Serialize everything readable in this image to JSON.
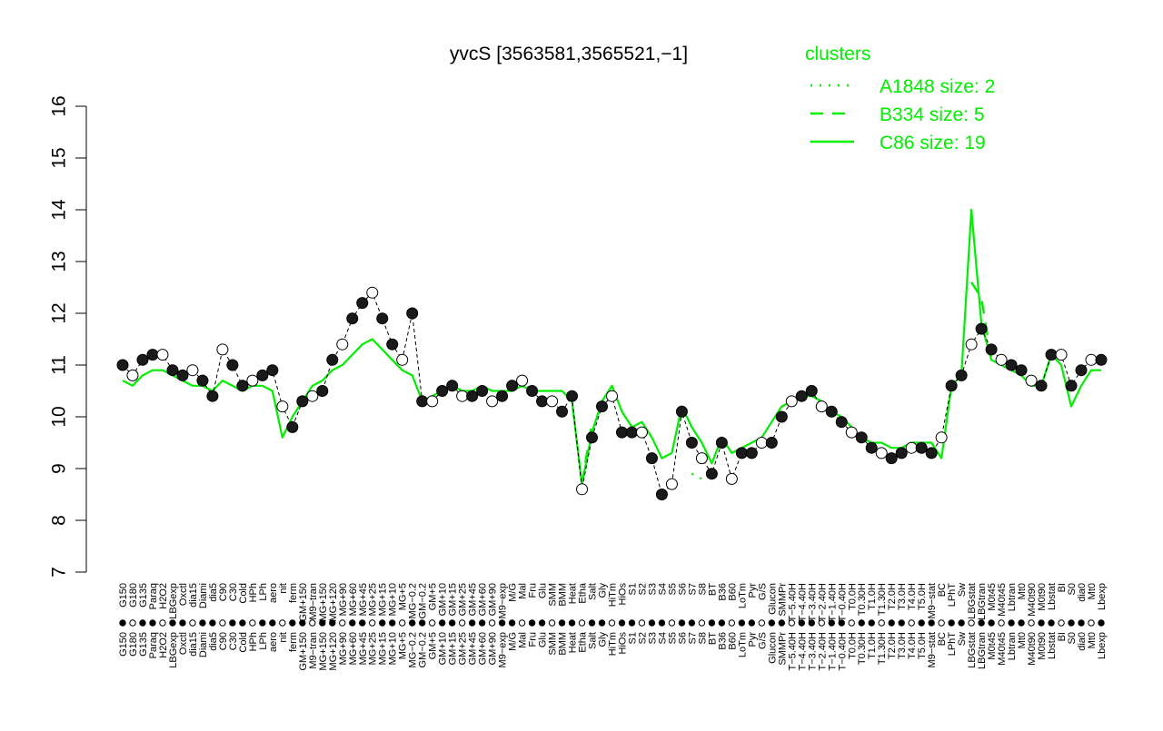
{
  "chart_data": {
    "type": "line",
    "title": "yvcS [3563581,3565521,−1]",
    "xlabel": "",
    "ylabel": "",
    "ylim": [
      7,
      16
    ],
    "yticks": [
      7,
      8,
      9,
      10,
      11,
      12,
      13,
      14,
      15,
      16
    ],
    "grid": false,
    "legend": {
      "title": "clusters",
      "position": "top-right",
      "entries": [
        {
          "label": "A1848 size: 2",
          "style": "dotted"
        },
        {
          "label": "B334 size: 5",
          "style": "dashed"
        },
        {
          "label": "C86 size: 19",
          "style": "solid"
        }
      ]
    },
    "colors": {
      "cluster": "#00ee00",
      "points_filled": "#1a1a1a",
      "points_open": "#ffffff",
      "axis": "#000000"
    },
    "x_tick_labels": [
      "G150",
      "G180",
      "G135",
      "Paraq",
      "H2O2",
      "LBGexp",
      "Oxctl",
      "dia15",
      "Diami",
      "dia5",
      "C90",
      "C30",
      "Cold",
      "HPh",
      "LPh",
      "aero",
      "nit",
      "ferm",
      "GM+150",
      "M9−tran",
      "MG+150",
      "MG+120",
      "MG+90",
      "MG+60",
      "MG+45",
      "MG+25",
      "MG+15",
      "MG+10",
      "MG+5",
      "MG−0.2",
      "GM−0.2",
      "GM+5",
      "GM+10",
      "GM+15",
      "GM+25",
      "GM+45",
      "GM+60",
      "GM+90",
      "M9−exp",
      "M/G",
      "Mal",
      "Fru",
      "Glu",
      "SMM",
      "BMM",
      "Heat",
      "Etha",
      "Salt",
      "Gly",
      "HiTm",
      "HiOs",
      "S1",
      "S2",
      "S3",
      "S4",
      "S5",
      "S6",
      "S7",
      "S8",
      "BT",
      "B36",
      "B60",
      "LoTm",
      "Pyr",
      "G/S",
      "Glucon",
      "SMMPr",
      "T−5.40H",
      "T−4.40H",
      "T−3.40H",
      "T−2.40H",
      "T−1.40H",
      "T−0.40H",
      "T0.0H",
      "T0.30H",
      "T1.0H",
      "T1.30H",
      "T2.0H",
      "T3.0H",
      "T4.0H",
      "T5.0H",
      "M9−stat",
      "BC",
      "LPhT",
      "Sw",
      "LBGstat",
      "LBGtran",
      "M0t45",
      "M40t45",
      "Lbtran",
      "Mt0",
      "M40t90",
      "M0t90",
      "Lbstat",
      "BI",
      "S0",
      "dia0",
      "Mt0",
      "Lbexp"
    ],
    "x": [
      1,
      2,
      3,
      4,
      5,
      6,
      7,
      8,
      9,
      10,
      11,
      12,
      13,
      14,
      15,
      16,
      17,
      18,
      19,
      20,
      21,
      22,
      23,
      24,
      25,
      26,
      27,
      28,
      29,
      30,
      31,
      32,
      33,
      34,
      35,
      36,
      37,
      38,
      39,
      40,
      41,
      42,
      43,
      44,
      45,
      46,
      47,
      48,
      49,
      50,
      51,
      52,
      53,
      54,
      55,
      56,
      57,
      58,
      59,
      60,
      61,
      62,
      63,
      64,
      65,
      66,
      67,
      68,
      69,
      70,
      71,
      72,
      73,
      74,
      75,
      76,
      77,
      78,
      79,
      80,
      81,
      82,
      83,
      84,
      85,
      86,
      87,
      88,
      89,
      90,
      91,
      92,
      93,
      94,
      95,
      96,
      97,
      98,
      99
    ],
    "series": [
      {
        "name": "C86 size: 19",
        "style": "solid",
        "values": [
          10.7,
          10.6,
          10.8,
          10.9,
          10.9,
          10.8,
          10.7,
          10.6,
          10.6,
          10.5,
          10.7,
          10.6,
          10.5,
          10.6,
          10.6,
          10.5,
          9.6,
          10.0,
          10.3,
          10.6,
          10.7,
          10.9,
          11.0,
          11.2,
          11.4,
          11.5,
          11.3,
          11.1,
          10.9,
          10.8,
          10.3,
          10.4,
          10.5,
          10.6,
          10.5,
          10.5,
          10.6,
          10.5,
          10.5,
          10.5,
          10.6,
          10.5,
          10.5,
          10.5,
          10.5,
          10.3,
          8.7,
          9.7,
          10.3,
          10.6,
          10.1,
          9.8,
          9.9,
          9.6,
          9.2,
          9.3,
          10.2,
          9.8,
          9.5,
          9.1,
          9.6,
          9.3,
          9.4,
          9.5,
          9.6,
          9.9,
          10.2,
          10.3,
          10.4,
          10.4,
          10.3,
          10.1,
          10.0,
          9.8,
          9.6,
          9.5,
          9.5,
          9.4,
          9.4,
          9.5,
          9.5,
          9.5,
          9.2,
          10.6,
          10.8,
          14.0,
          11.8,
          11.1,
          11.0,
          10.9,
          10.8,
          10.6,
          10.6,
          11.2,
          11.0,
          10.2,
          10.6,
          10.9,
          10.9
        ]
      },
      {
        "name": "B334 size: 5",
        "style": "dashed",
        "values": [
          null,
          null,
          null,
          null,
          null,
          null,
          null,
          null,
          null,
          null,
          null,
          null,
          null,
          null,
          null,
          null,
          null,
          null,
          null,
          null,
          null,
          null,
          null,
          null,
          null,
          null,
          null,
          null,
          null,
          null,
          null,
          null,
          null,
          null,
          null,
          null,
          null,
          null,
          null,
          null,
          null,
          null,
          null,
          null,
          null,
          null,
          8.7,
          9.9,
          null,
          null,
          null,
          null,
          null,
          null,
          null,
          null,
          null,
          null,
          null,
          null,
          null,
          null,
          null,
          null,
          null,
          null,
          null,
          null,
          null,
          null,
          null,
          null,
          null,
          null,
          null,
          null,
          null,
          null,
          null,
          null,
          null,
          null,
          8.6,
          null,
          null,
          12.6,
          12.3,
          11.1,
          null,
          11.4,
          null,
          10.3,
          null,
          null,
          null,
          null,
          null,
          null,
          null
        ]
      },
      {
        "name": "A1848 size: 2",
        "style": "dotted",
        "values": [
          null,
          null,
          null,
          null,
          null,
          null,
          null,
          null,
          null,
          null,
          null,
          null,
          null,
          null,
          null,
          null,
          null,
          null,
          null,
          null,
          null,
          null,
          null,
          null,
          null,
          null,
          null,
          null,
          null,
          null,
          null,
          null,
          null,
          null,
          null,
          null,
          null,
          null,
          null,
          null,
          null,
          null,
          null,
          null,
          null,
          null,
          null,
          null,
          null,
          null,
          null,
          null,
          null,
          null,
          null,
          null,
          null,
          8.9,
          8.8,
          null,
          null,
          null,
          null,
          null,
          null,
          null,
          null,
          null,
          null,
          null,
          null,
          null,
          null,
          null,
          null,
          null,
          null,
          null,
          null,
          null,
          null,
          null,
          null,
          null,
          null,
          null,
          null,
          null,
          null,
          null,
          null,
          null,
          null,
          null,
          null,
          null,
          null,
          null,
          null
        ]
      },
      {
        "name": "",
        "style": "points",
        "values": [
          11.0,
          10.8,
          11.1,
          11.2,
          11.2,
          10.9,
          10.8,
          10.9,
          10.7,
          10.4,
          11.3,
          11.0,
          10.6,
          10.7,
          10.8,
          10.9,
          10.2,
          9.8,
          10.3,
          10.4,
          10.5,
          11.1,
          11.4,
          11.9,
          12.2,
          12.4,
          11.9,
          11.4,
          11.1,
          12.0,
          10.3,
          10.3,
          10.5,
          10.6,
          10.4,
          10.4,
          10.5,
          10.3,
          10.4,
          10.6,
          10.7,
          10.5,
          10.3,
          10.3,
          10.1,
          10.4,
          8.6,
          9.6,
          10.2,
          10.4,
          9.7,
          9.7,
          9.7,
          9.2,
          8.5,
          8.7,
          10.1,
          9.5,
          9.2,
          8.9,
          9.5,
          8.8,
          9.3,
          9.3,
          9.5,
          9.5,
          10.0,
          10.3,
          10.4,
          10.5,
          10.2,
          10.1,
          9.9,
          9.7,
          9.6,
          9.4,
          9.3,
          9.2,
          9.3,
          9.4,
          9.4,
          9.3,
          9.6,
          10.6,
          10.8,
          11.4,
          11.7,
          11.3,
          11.1,
          11.0,
          10.9,
          10.7,
          10.6,
          11.2,
          11.2,
          10.6,
          10.9,
          11.1,
          11.1
        ]
      }
    ]
  }
}
